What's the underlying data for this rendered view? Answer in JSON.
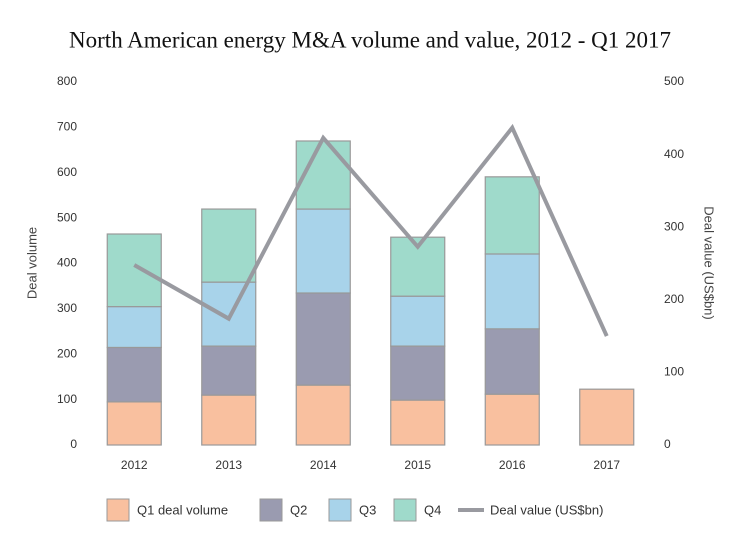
{
  "chart_data": {
    "type": "bar",
    "title": "North American energy M&A volume and value, 2012 - Q1 2017",
    "ylabel": "Deal volume",
    "y2label": "Deal value (US$bn)",
    "stacked": true,
    "categories": [
      "2012",
      "2013",
      "2014",
      "2015",
      "2016",
      "2017"
    ],
    "series": [
      {
        "name": "Q1 deal volume",
        "color": "#f9c09f",
        "values": [
          95,
          110,
          132,
          99,
          112,
          123
        ]
      },
      {
        "name": "Q2",
        "color": "#9a9bb0",
        "values": [
          120,
          108,
          203,
          119,
          144,
          null
        ]
      },
      {
        "name": "Q3",
        "color": "#a8d3ea",
        "values": [
          90,
          141,
          185,
          110,
          165,
          null
        ]
      },
      {
        "name": "Q4",
        "color": "#9fdacb",
        "values": [
          160,
          161,
          150,
          130,
          170,
          null
        ]
      },
      {
        "name": "Deal value (US$bn)",
        "type": "line",
        "axis": "y2",
        "color": "#999aa0",
        "values": [
          248,
          174,
          423,
          273,
          437,
          150
        ]
      }
    ],
    "ylim": [
      0,
      800
    ],
    "yticks": [
      0,
      100,
      200,
      300,
      400,
      500,
      600,
      700,
      800
    ],
    "y2lim": [
      0,
      500
    ],
    "y2ticks": [
      0,
      100,
      200,
      300,
      400,
      500
    ],
    "legend": "bottom"
  }
}
